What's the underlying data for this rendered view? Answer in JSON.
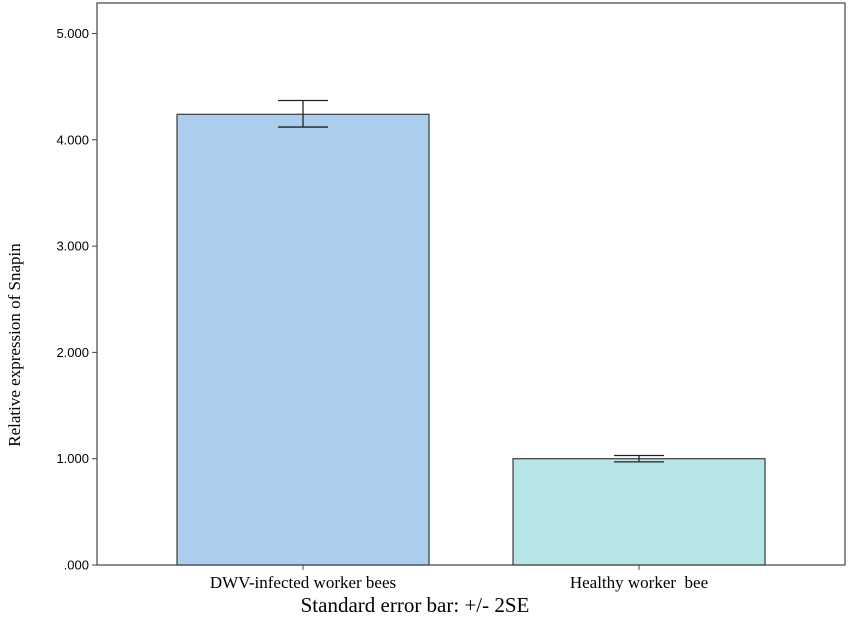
{
  "chart_data": {
    "type": "bar",
    "categories": [
      "DWV-infected worker bees",
      "Healthy worker  bee"
    ],
    "values": [
      4.24,
      1.0
    ],
    "errors": [
      {
        "low": 4.12,
        "high": 4.37
      },
      {
        "low": 0.97,
        "high": 1.03
      }
    ],
    "bar_colors": [
      "#abcdee",
      "#b5e5e6"
    ],
    "ylabel": "Relative expression of Snapin",
    "xlabel": "",
    "note": "Standard error bar: +/- 2SE",
    "ylim": [
      0,
      5.3
    ],
    "yticks": [
      0,
      1,
      2,
      3,
      4,
      5
    ],
    "ytick_labels": [
      ".000",
      "1.000",
      "2.000",
      "3.000",
      "4.000",
      "5.000"
    ],
    "grid": false,
    "legend": "none"
  }
}
